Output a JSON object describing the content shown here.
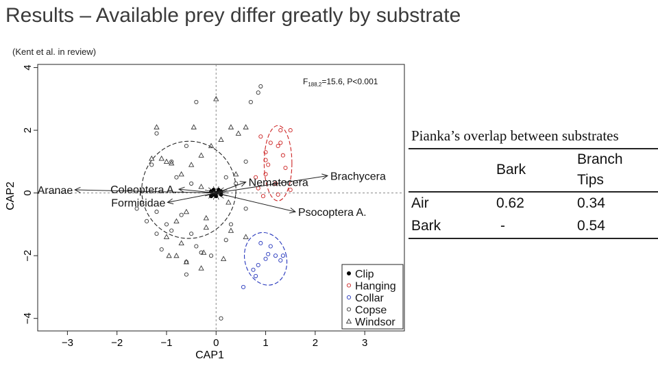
{
  "slide": {
    "title": "Results – Available prey differ greatly by substrate",
    "citation": "(Kent et al. in review)"
  },
  "chart_data": {
    "type": "scatter",
    "xlabel": "CAP1",
    "ylabel": "CAP2",
    "xlim": [
      -3.6,
      3.8
    ],
    "ylim": [
      -4.4,
      4.1
    ],
    "xticks": [
      -3,
      -2,
      -1,
      0,
      1,
      2,
      3
    ],
    "yticks": [
      -4,
      -2,
      0,
      2,
      4
    ],
    "annotation": {
      "prefix": "F",
      "subscript": "188,2",
      "suffix": "=15.6, P<0.001"
    },
    "legend_position": "bottom-right",
    "series": [
      {
        "name": "Clip",
        "marker": "filled-circle",
        "color": "#000000",
        "points": [
          [
            0.0,
            0.0
          ],
          [
            0.05,
            0.05
          ],
          [
            -0.05,
            -0.05
          ],
          [
            0.1,
            -0.05
          ],
          [
            -0.1,
            0.05
          ],
          [
            0.0,
            -0.1
          ],
          [
            0.05,
            0.1
          ],
          [
            -0.05,
            0.1
          ],
          [
            0.1,
            0.05
          ],
          [
            -0.1,
            -0.1
          ]
        ]
      },
      {
        "name": "Hanging",
        "marker": "open-circle",
        "color": "#cc2222",
        "points": [
          [
            0.9,
            1.8
          ],
          [
            1.0,
            1.3
          ],
          [
            1.05,
            0.9
          ],
          [
            1.1,
            1.6
          ],
          [
            1.3,
            1.6
          ],
          [
            1.0,
            0.6
          ],
          [
            1.2,
            0.3
          ],
          [
            0.85,
            0.15
          ],
          [
            0.95,
            -0.1
          ],
          [
            1.25,
            -0.05
          ],
          [
            1.3,
            2.0
          ],
          [
            1.35,
            1.2
          ],
          [
            1.5,
            0.1
          ],
          [
            1.0,
            1.05
          ],
          [
            0.8,
            0.5
          ],
          [
            1.5,
            2.0
          ],
          [
            1.4,
            0.8
          ],
          [
            1.25,
            1.5
          ]
        ]
      },
      {
        "name": "Collar",
        "marker": "open-circle",
        "color": "#2233bb",
        "points": [
          [
            0.9,
            -1.6
          ],
          [
            1.05,
            -1.95
          ],
          [
            1.2,
            -2.0
          ],
          [
            1.3,
            -2.15
          ],
          [
            0.85,
            -2.3
          ],
          [
            1.0,
            -2.1
          ],
          [
            1.1,
            -1.7
          ],
          [
            0.75,
            -2.45
          ],
          [
            0.8,
            -2.65
          ],
          [
            1.35,
            -2.0
          ],
          [
            0.55,
            -3.0
          ]
        ]
      },
      {
        "name": "Copse",
        "marker": "open-circle",
        "color": "#333333",
        "points": [
          [
            -1.2,
            1.9
          ],
          [
            -0.9,
            1.0
          ],
          [
            -1.3,
            0.9
          ],
          [
            -0.5,
            0.3
          ],
          [
            -0.8,
            0.5
          ],
          [
            -1.5,
            -0.3
          ],
          [
            -1.2,
            -0.6
          ],
          [
            -1.4,
            -0.9
          ],
          [
            -1.0,
            -1.0
          ],
          [
            -0.7,
            -0.7
          ],
          [
            -0.5,
            -1.3
          ],
          [
            -0.4,
            -1.7
          ],
          [
            -0.1,
            -2.0
          ],
          [
            0.2,
            -1.5
          ],
          [
            0.3,
            -1.0
          ],
          [
            -0.9,
            -1.2
          ],
          [
            -1.2,
            -1.3
          ],
          [
            -1.1,
            -1.8
          ],
          [
            -0.6,
            -2.2
          ],
          [
            -0.3,
            -1.9
          ],
          [
            0.6,
            -0.5
          ],
          [
            0.4,
            0.3
          ],
          [
            0.6,
            1.0
          ],
          [
            0.9,
            3.4
          ],
          [
            0.85,
            3.2
          ],
          [
            0.7,
            2.9
          ],
          [
            -0.4,
            2.9
          ],
          [
            0.1,
            -4.0
          ],
          [
            -0.6,
            -2.6
          ],
          [
            -1.6,
            -0.5
          ],
          [
            -0.6,
            1.5
          ],
          [
            0.2,
            0.5
          ]
        ]
      },
      {
        "name": "Windsor",
        "marker": "open-triangle",
        "color": "#333333",
        "points": [
          [
            -1.2,
            2.1
          ],
          [
            -1.1,
            1.1
          ],
          [
            -0.9,
            0.95
          ],
          [
            -0.7,
            0.6
          ],
          [
            -0.5,
            0.9
          ],
          [
            -0.3,
            1.2
          ],
          [
            -0.1,
            1.5
          ],
          [
            0.1,
            1.7
          ],
          [
            -0.6,
            -0.6
          ],
          [
            -0.8,
            -0.9
          ],
          [
            -1.0,
            -1.4
          ],
          [
            -0.7,
            -1.6
          ],
          [
            -0.8,
            -2.0
          ],
          [
            -0.6,
            -2.2
          ],
          [
            -0.3,
            -2.4
          ],
          [
            -0.25,
            -1.9
          ],
          [
            0.15,
            -2.1
          ],
          [
            0.3,
            -1.2
          ],
          [
            -0.2,
            -0.8
          ],
          [
            0.25,
            -0.3
          ],
          [
            0.4,
            0.6
          ],
          [
            -0.45,
            2.1
          ],
          [
            0.0,
            3.0
          ],
          [
            -1.0,
            1.0
          ],
          [
            -1.3,
            1.1
          ],
          [
            -0.95,
            -2.0
          ],
          [
            -0.3,
            0.2
          ],
          [
            0.6,
            2.1
          ],
          [
            0.3,
            2.1
          ],
          [
            0.45,
            1.9
          ],
          [
            -0.2,
            -1.1
          ],
          [
            0.6,
            -1.4
          ]
        ]
      }
    ],
    "ellipses": [
      {
        "color": "#222222",
        "style": "dashed",
        "cx": -0.55,
        "cy": 0.1,
        "rx": 0.95,
        "ry": 1.55,
        "angle": 6
      },
      {
        "color": "#cc2222",
        "style": "dashed",
        "cx": 1.25,
        "cy": 0.95,
        "rx": 0.28,
        "ry": 1.2,
        "angle": 0
      },
      {
        "color": "#2233bb",
        "style": "dashed",
        "cx": 1.0,
        "cy": -2.1,
        "rx": 0.42,
        "ry": 0.85,
        "angle": -15
      }
    ],
    "vectors": [
      {
        "label": "Brachycera",
        "x": 2.25,
        "y": 0.55,
        "label_anchor": "start"
      },
      {
        "label": "Nematocera",
        "x": 0.6,
        "y": 0.35,
        "label_anchor": "start"
      },
      {
        "label": "Psocoptera A.",
        "x": 1.6,
        "y": -0.6,
        "label_anchor": "start"
      },
      {
        "label": "Aranae",
        "x": -2.85,
        "y": 0.1,
        "label_anchor": "end"
      },
      {
        "label": "Coleoptera A.",
        "x": -0.75,
        "y": 0.12,
        "label_anchor": "end"
      },
      {
        "label": "Formicidae",
        "x": -0.98,
        "y": -0.3,
        "label_anchor": "end"
      }
    ]
  },
  "table": {
    "caption": "Pianka’s overlap between substrates",
    "headers": [
      "",
      "Bark",
      "Branch\nTips"
    ],
    "rows": [
      [
        "Air",
        "0.62",
        "0.34"
      ],
      [
        "Bark",
        "-",
        "0.54"
      ]
    ]
  }
}
